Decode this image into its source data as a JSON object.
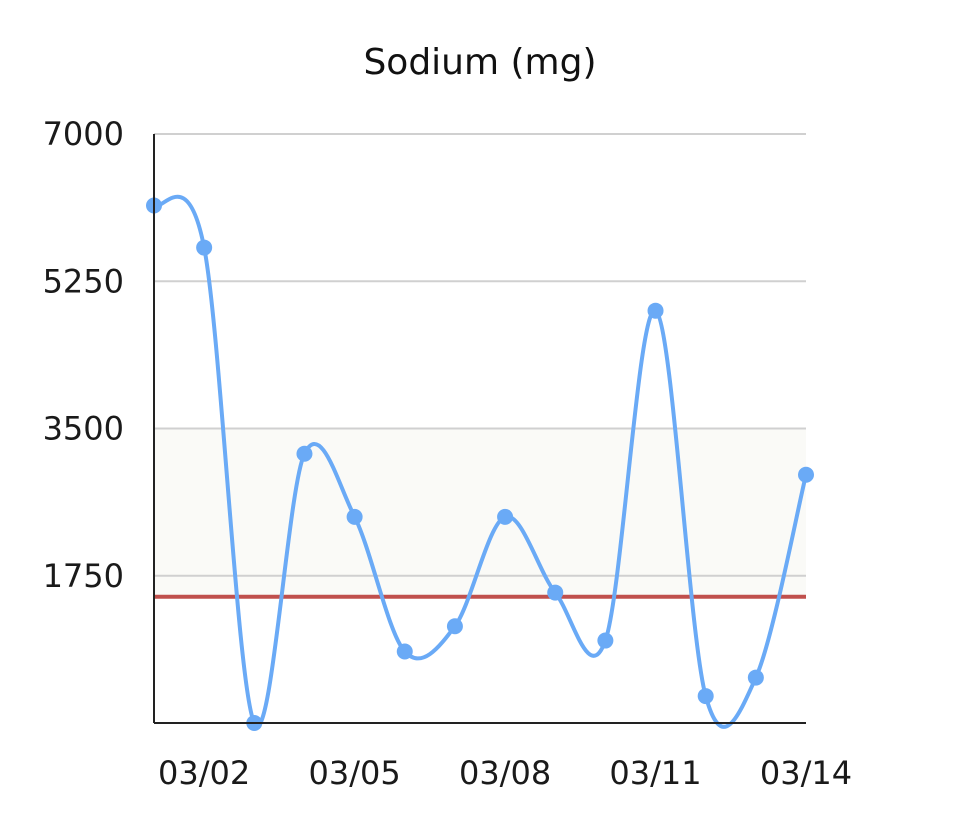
{
  "chart_data": {
    "type": "line",
    "title": "Sodium (mg)",
    "xlabel": "",
    "ylabel": "",
    "categories": [
      "03/01",
      "03/02",
      "03/03",
      "03/04",
      "03/05",
      "03/06",
      "03/07",
      "03/08",
      "03/09",
      "03/10",
      "03/11",
      "03/12",
      "03/13",
      "03/14"
    ],
    "x_tick_labels": [
      "03/02",
      "03/05",
      "03/08",
      "03/11",
      "03/14"
    ],
    "y_ticks": [
      "7000",
      "5250",
      "3500",
      "1750"
    ],
    "ylim": [
      0,
      7000
    ],
    "series": [
      {
        "values": [
          6150,
          5650,
          0,
          3200,
          2450,
          850,
          1150,
          2450,
          1550,
          980,
          4900,
          320,
          540,
          2950
        ]
      }
    ],
    "reference_line": {
      "value": 1500
    },
    "highlight_band": [
      1500,
      3500
    ],
    "grid": true,
    "line_style": "smooth",
    "colors": {
      "series": "#6aaaf6",
      "reference_line": "#c0504d",
      "band": "#fafaf7",
      "grid": "#d0d0d0",
      "axis": "#222222"
    }
  }
}
